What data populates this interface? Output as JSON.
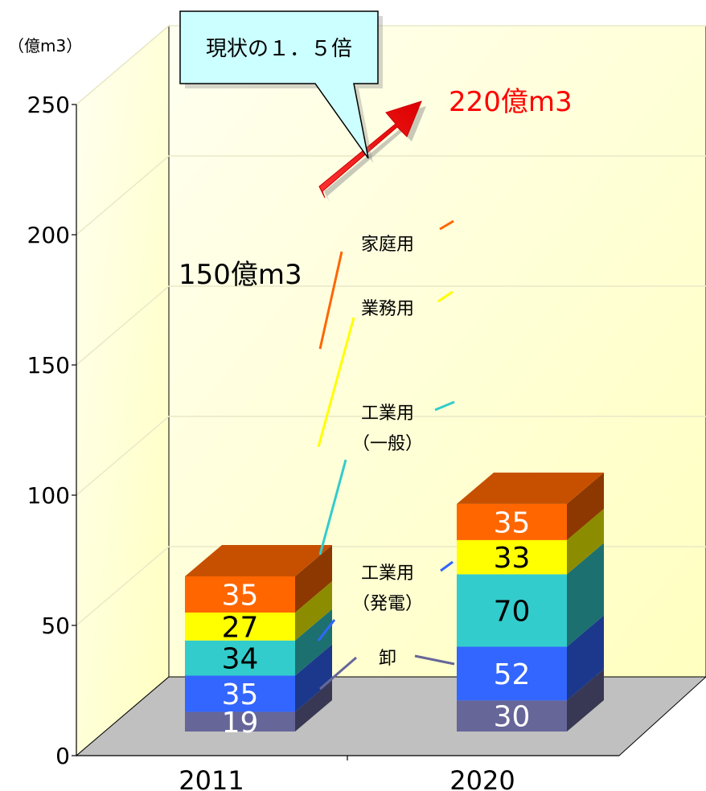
{
  "chart_data": {
    "type": "bar",
    "stacked": true,
    "three_d": true,
    "unit_label": "（億m3）",
    "categories": [
      "2011",
      "2020"
    ],
    "ylim": [
      0,
      250
    ],
    "yticks": [
      0,
      50,
      100,
      150,
      200,
      250
    ],
    "grid": true,
    "series": [
      {
        "name": "卸",
        "values": [
          19,
          30
        ],
        "color": "#666699"
      },
      {
        "name": "工業用（発電）",
        "label_lines": [
          "工業用",
          "（発電）"
        ],
        "values": [
          35,
          52
        ],
        "color": "#3366ff"
      },
      {
        "name": "工業用（一般）",
        "label_lines": [
          "工業用",
          "（一般）"
        ],
        "values": [
          34,
          70
        ],
        "color": "#33cccc"
      },
      {
        "name": "業務用",
        "label_lines": [
          "業務用"
        ],
        "values": [
          27,
          33
        ],
        "color": "#ffff00"
      },
      {
        "name": "家庭用",
        "label_lines": [
          "家庭用"
        ],
        "values": [
          35,
          35
        ],
        "color": "#ff6600"
      }
    ],
    "totals": [
      "150億m3",
      "220億m3"
    ],
    "total_colors": [
      "#000000",
      "#ff0000"
    ],
    "callout": "現状の１．５倍"
  }
}
